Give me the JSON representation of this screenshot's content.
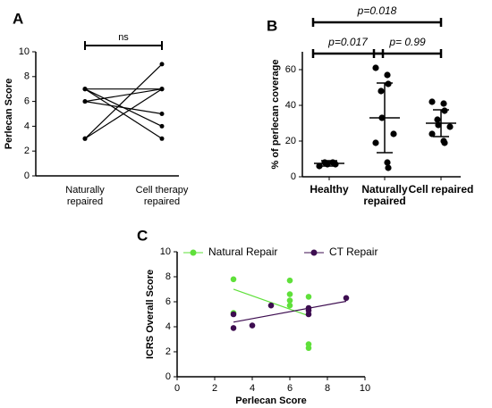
{
  "chart_data": [
    {
      "type": "line",
      "panel_label": "A",
      "ylabel": "Perlecan Score",
      "categories": [
        "Naturally repaired",
        "Cell therapy repaired"
      ],
      "values": [
        [
          3,
          3,
          6,
          6,
          7,
          7,
          7
        ],
        [
          9,
          7,
          7,
          5,
          7,
          3,
          4
        ]
      ],
      "color": "#000000",
      "ylim": [
        0,
        10
      ],
      "yticks": [
        0,
        2,
        4,
        6,
        8,
        10
      ],
      "annotations": [
        "ns"
      ]
    },
    {
      "type": "dot",
      "panel_label": "B",
      "ylabel": "% of perlecan coverage",
      "categories": [
        "Healthy",
        "Naturally repaired",
        "Cell repaired"
      ],
      "values": [
        [
          6,
          7,
          7,
          8,
          8
        ],
        [
          61,
          57,
          52,
          48,
          33,
          24,
          19,
          8,
          5
        ],
        [
          42,
          41,
          37,
          32,
          29,
          28,
          24,
          20,
          19
        ]
      ],
      "means": [
        7.5,
        33,
        30
      ],
      "sds": [
        1.5,
        19.5,
        7.5
      ],
      "color": "#000000",
      "ylim": [
        0,
        70
      ],
      "yticks": [
        0,
        20,
        40,
        60
      ],
      "annotations": [
        "p=0.018",
        "p=0.017",
        "p= 0.99"
      ]
    },
    {
      "type": "scatter",
      "panel_label": "C",
      "xlabel": "Perlecan Score",
      "ylabel": "ICRS Overall  Score",
      "series": [
        {
          "name": "Natural Repair",
          "color": "#5fe03a",
          "x": [
            3,
            3,
            6,
            6,
            6,
            6,
            7,
            7,
            7
          ],
          "y": [
            7.8,
            5.1,
            7.7,
            6.6,
            6.1,
            5.7,
            6.4,
            2.6,
            2.3
          ]
        },
        {
          "name": "CT Repair",
          "color": "#3d0d50",
          "x": [
            3,
            3,
            4,
            5,
            7,
            7,
            7,
            9
          ],
          "y": [
            3.9,
            5.0,
            4.1,
            5.7,
            5.0,
            5.5,
            5.3,
            6.3
          ]
        }
      ],
      "xlim": [
        0,
        10
      ],
      "xticks": [
        0,
        2,
        4,
        6,
        8,
        10
      ],
      "ylim": [
        0,
        10
      ],
      "yticks": [
        0,
        2,
        4,
        6,
        8,
        10
      ]
    }
  ]
}
